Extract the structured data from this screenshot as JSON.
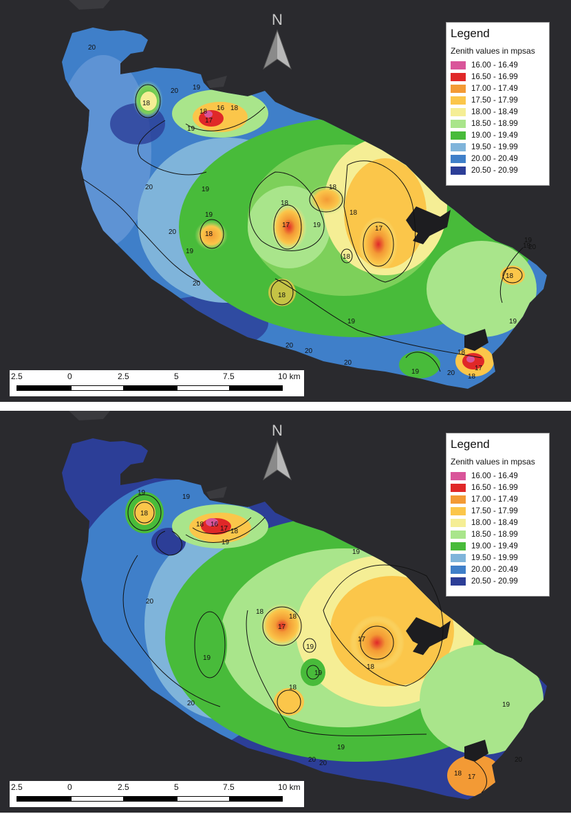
{
  "maps": [
    {
      "legend": {
        "title": "Legend",
        "subtitle": "Zenith values in mpsas",
        "items": [
          {
            "label": "16.00 - 16.49",
            "color": "#d9559a"
          },
          {
            "label": "16.50 - 16.99",
            "color": "#e02828"
          },
          {
            "label": "17.00 - 17.49",
            "color": "#f39a35"
          },
          {
            "label": "17.50 - 17.99",
            "color": "#fbc64a"
          },
          {
            "label": "18.00 - 18.49",
            "color": "#f5ee95"
          },
          {
            "label": "18.50 - 18.99",
            "color": "#a9e58b"
          },
          {
            "label": "19.00 - 19.49",
            "color": "#48bb3a"
          },
          {
            "label": "19.50 - 19.99",
            "color": "#7fb4da"
          },
          {
            "label": "20.00 - 20.49",
            "color": "#3f7fc9"
          },
          {
            "label": "20.50 - 20.99",
            "color": "#2c3e97"
          }
        ]
      },
      "north_label": "N",
      "scale": {
        "ticks": [
          "2.5",
          "0",
          "2.5",
          "5",
          "7.5",
          "10 km"
        ]
      },
      "contour_labels": [
        "20",
        "20",
        "19",
        "18",
        "18",
        "17",
        "16",
        "18",
        "19",
        "19",
        "18",
        "19",
        "18",
        "20",
        "18",
        "17",
        "17",
        "18",
        "19",
        "18",
        "18",
        "19",
        "20",
        "19",
        "20",
        "20",
        "20",
        "20",
        "19",
        "19",
        "18",
        "19",
        "17",
        "18",
        "18",
        "20",
        "19",
        "20"
      ]
    },
    {
      "legend": {
        "title": "Legend",
        "subtitle": "Zenith values in mpsas",
        "items": [
          {
            "label": "16.00 - 16.49",
            "color": "#d9559a"
          },
          {
            "label": "16.50 - 16.99",
            "color": "#e02828"
          },
          {
            "label": "17.00 - 17.49",
            "color": "#f39a35"
          },
          {
            "label": "17.50 - 17.99",
            "color": "#fbc64a"
          },
          {
            "label": "18.00 - 18.49",
            "color": "#f5ee95"
          },
          {
            "label": "18.50 - 18.99",
            "color": "#a9e58b"
          },
          {
            "label": "19.00 - 19.49",
            "color": "#48bb3a"
          },
          {
            "label": "19.50 - 19.99",
            "color": "#7fb4da"
          },
          {
            "label": "20.00 - 20.49",
            "color": "#3f7fc9"
          },
          {
            "label": "20.50 - 20.99",
            "color": "#2c3e97"
          }
        ]
      },
      "north_label": "N",
      "scale": {
        "ticks": [
          "2.5",
          "0",
          "2.5",
          "5",
          "7.5",
          "10 km"
        ]
      },
      "contour_labels": [
        "19",
        "18",
        "19",
        "18",
        "16",
        "17",
        "18",
        "19",
        "19",
        "20",
        "18",
        "17",
        "18",
        "19",
        "17",
        "18",
        "19",
        "19",
        "18",
        "20",
        "19",
        "19",
        "20",
        "20",
        "18",
        "17",
        "20"
      ]
    }
  ]
}
